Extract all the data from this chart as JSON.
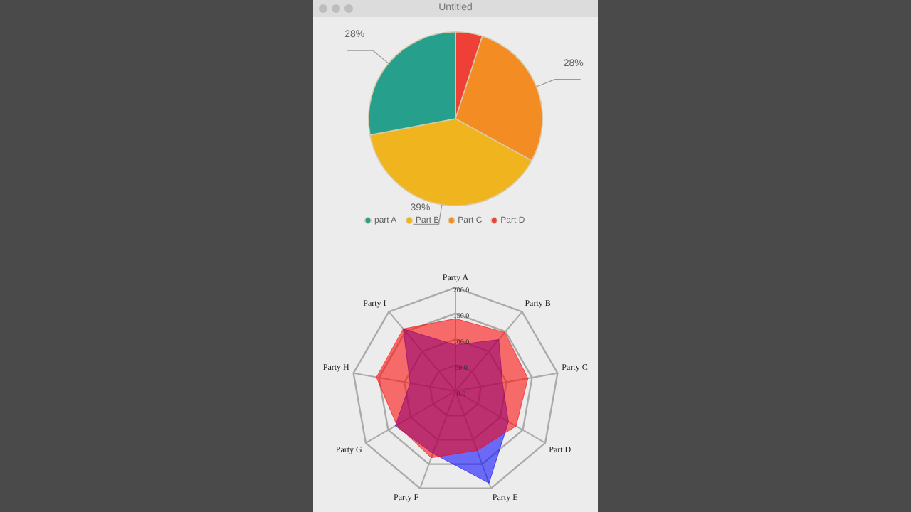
{
  "chart_data": [
    {
      "type": "pie",
      "annotations": [
        "Untitled"
      ],
      "categories": [
        "part A",
        "Part B",
        "Part C",
        "Part D"
      ],
      "values": [
        28,
        39,
        28,
        5
      ],
      "colors": [
        "#26a08c",
        "#f0b41e",
        "#f28c23",
        "#ee4036"
      ],
      "value_labels": [
        "28%",
        "39%",
        "28%",
        null
      ],
      "legend": "bottom"
    },
    {
      "type": "radar",
      "categories": [
        "Party A",
        "Party B",
        "Party C",
        "Part D",
        "Party E",
        "Party F",
        "Party G",
        "Party H",
        "Party I"
      ],
      "ylim": [
        0,
        200
      ],
      "yticks": [
        {
          "value": 0,
          "label": "0.0"
        },
        {
          "value": 50,
          "label": "50.0"
        },
        {
          "value": 100,
          "label": "100.0"
        },
        {
          "value": 150,
          "label": "150.0"
        },
        {
          "value": 200,
          "label": "200.0"
        }
      ],
      "series": [
        {
          "color": "#ff0000",
          "values": [
            140,
            148,
            142,
            135,
            122,
            137,
            131,
            155,
            157
          ]
        },
        {
          "color": "#0000ff",
          "values": [
            89,
            130,
            92,
            118,
            189,
            128,
            134,
            89,
            157
          ]
        }
      ]
    }
  ]
}
